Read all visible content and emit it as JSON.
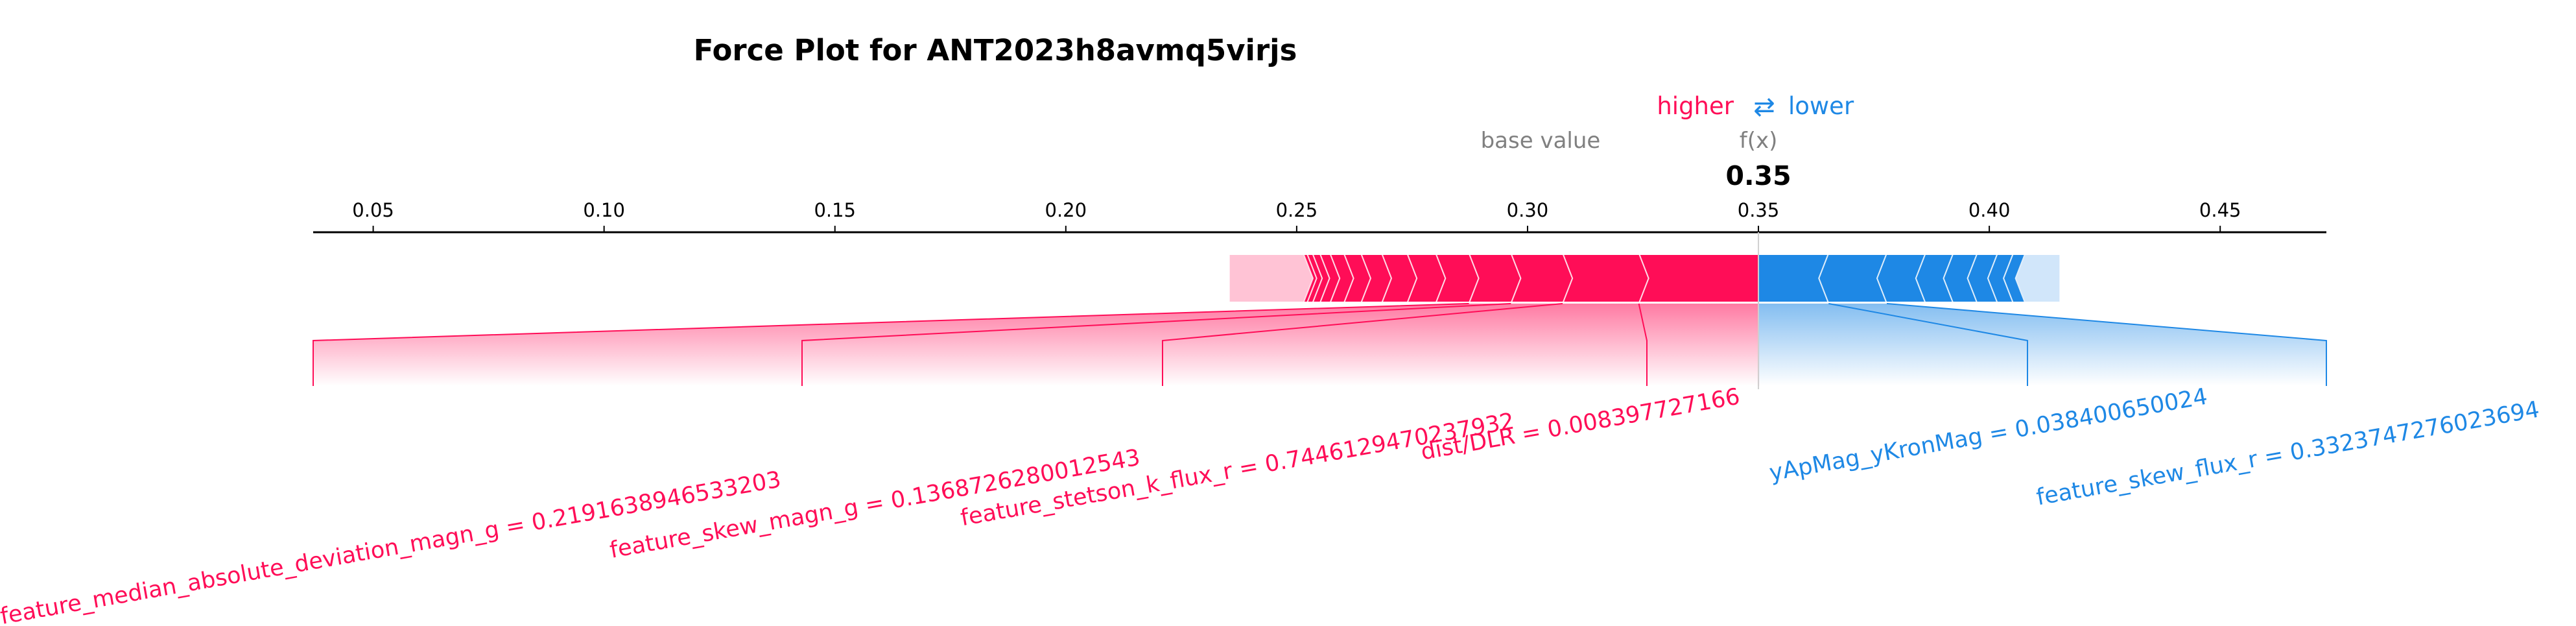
{
  "colors": {
    "positive": "#ff0d57",
    "negative": "#1e88e5",
    "positive_light": "#ffc3d5",
    "negative_light": "#d1e6fa",
    "neutral": "#808080"
  },
  "chart_data": {
    "type": "force",
    "title": "Force Plot for ANT2023h8avmq5virjs",
    "higher_label": "higher",
    "lower_label": "lower",
    "arrows_glyph": "⇄",
    "base_value_label": "base value",
    "fx_label": "f(x)",
    "base_value": 0.3,
    "fx_value": 0.35,
    "fx_display": "0.35",
    "xlim": [
      0.037,
      0.473
    ],
    "ticks": [
      "0.05",
      "0.10",
      "0.15",
      "0.20",
      "0.25",
      "0.30",
      "0.35",
      "0.40",
      "0.45"
    ],
    "positive_segments": [
      {
        "label": "dist/DLR = 0.008397727166",
        "start": 0.3241,
        "end": 0.35
      },
      {
        "label": "feature_stetson_k_flux_r = 0.7446129470237932",
        "start": 0.3076,
        "end": 0.3241
      },
      {
        "label": "feature_skew_magn_g = 0.1368726280012543",
        "start": 0.2964,
        "end": 0.3076
      },
      {
        "label": "feature_median_absolute_deviation_magn_g = 0.2191638946533203",
        "start": 0.2873,
        "end": 0.2964
      },
      {
        "label": "",
        "start": 0.2801,
        "end": 0.2873
      },
      {
        "label": "",
        "start": 0.2739,
        "end": 0.2801
      },
      {
        "label": "",
        "start": 0.2684,
        "end": 0.2739
      },
      {
        "label": "",
        "start": 0.2639,
        "end": 0.2684
      },
      {
        "label": "",
        "start": 0.2602,
        "end": 0.2639
      },
      {
        "label": "",
        "start": 0.2572,
        "end": 0.2602
      },
      {
        "label": "",
        "start": 0.255,
        "end": 0.2572
      },
      {
        "label": "",
        "start": 0.2534,
        "end": 0.255
      },
      {
        "label": "",
        "start": 0.2522,
        "end": 0.2534
      },
      {
        "label": "",
        "start": 0.2514,
        "end": 0.2522
      },
      {
        "label": "",
        "start": 0.2355,
        "end": 0.2514
      }
    ],
    "negative_segments": [
      {
        "label": "feature_skew_flux_r = 0.3323747276023694",
        "start": 0.35,
        "end": 0.3652
      },
      {
        "label": "yApMag_yKronMag = 0.038400650024",
        "start": 0.3652,
        "end": 0.3778
      },
      {
        "label": "",
        "start": 0.3778,
        "end": 0.3862
      },
      {
        "label": "",
        "start": 0.3862,
        "end": 0.3922
      },
      {
        "label": "",
        "start": 0.3922,
        "end": 0.3974
      },
      {
        "label": "",
        "start": 0.3974,
        "end": 0.4018
      },
      {
        "label": "",
        "start": 0.4018,
        "end": 0.4052
      },
      {
        "label": "",
        "start": 0.4052,
        "end": 0.4078
      },
      {
        "label": "",
        "start": 0.4078,
        "end": 0.4152
      }
    ]
  }
}
